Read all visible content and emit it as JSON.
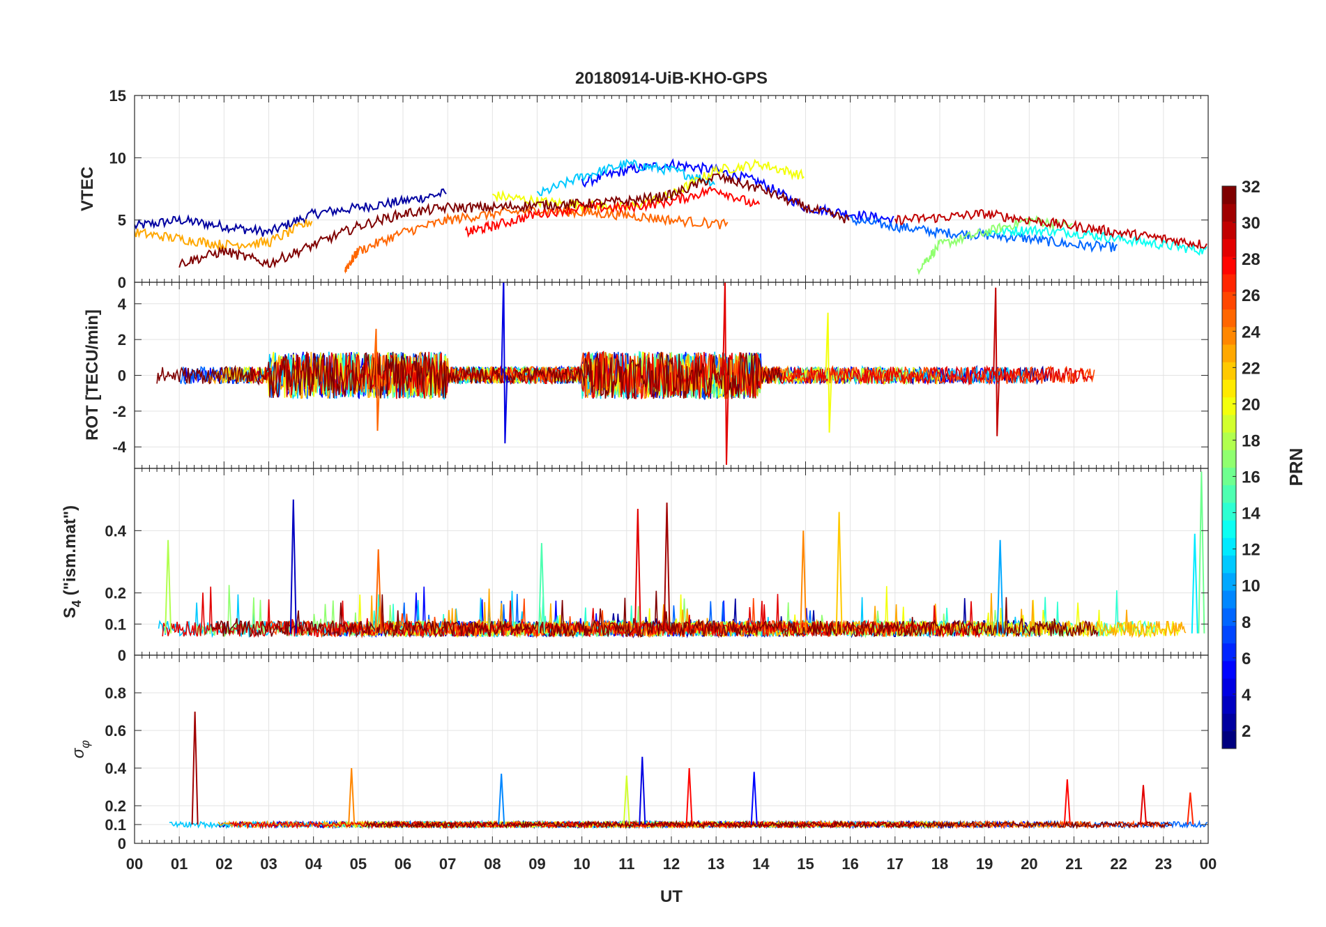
{
  "figure": {
    "title": "20180914-UiB-KHO-GPS",
    "xlabel": "UT",
    "x_ticks": [
      "00",
      "01",
      "02",
      "03",
      "04",
      "05",
      "06",
      "07",
      "08",
      "09",
      "10",
      "11",
      "12",
      "13",
      "14",
      "15",
      "16",
      "17",
      "18",
      "19",
      "20",
      "21",
      "22",
      "23",
      "00"
    ],
    "colorbar": {
      "label": "PRN",
      "range": [
        1,
        32
      ],
      "ticks": [
        "2",
        "4",
        "6",
        "8",
        "10",
        "12",
        "14",
        "16",
        "18",
        "20",
        "22",
        "24",
        "26",
        "28",
        "30",
        "32"
      ],
      "colormap": "jet",
      "stops": [
        "#00007f",
        "#0000ff",
        "#007fff",
        "#00ffff",
        "#7fff7f",
        "#ffff00",
        "#ff7f00",
        "#ff0000",
        "#7f0000"
      ]
    }
  },
  "chart_data": [
    {
      "type": "line",
      "panel": "vtec",
      "ylabel": "VTEC",
      "ylim": [
        0,
        15
      ],
      "y_ticks": [
        "0",
        "5",
        "10",
        "15"
      ],
      "x_unit": "UT hours",
      "xlim": [
        0,
        24
      ],
      "grid": true,
      "series_note_color_by_prn": true,
      "series": [
        {
          "prn": 2,
          "x": [
            0,
            1,
            2,
            3,
            4,
            5,
            6,
            7
          ],
          "values": [
            4.5,
            5,
            4.5,
            4,
            5.5,
            6,
            6.5,
            7.2
          ]
        },
        {
          "prn": 5,
          "x": [
            10,
            11,
            12,
            13,
            14,
            15,
            16,
            17
          ],
          "values": [
            8,
            9,
            9.5,
            9,
            8,
            6,
            5.5,
            5
          ]
        },
        {
          "prn": 8,
          "x": [
            16,
            17,
            18,
            19,
            20,
            21,
            22
          ],
          "values": [
            5,
            4.5,
            4,
            3.8,
            3.5,
            3,
            2.8
          ]
        },
        {
          "prn": 11,
          "x": [
            9,
            10,
            11,
            12,
            13
          ],
          "values": [
            7,
            8.5,
            9.5,
            9,
            8
          ]
        },
        {
          "prn": 13,
          "x": [
            19,
            20,
            21,
            22,
            23,
            24
          ],
          "values": [
            4,
            4.2,
            4,
            3.5,
            3,
            2.5
          ]
        },
        {
          "prn": 17,
          "x": [
            17.5,
            18,
            19,
            20,
            21
          ],
          "values": [
            1,
            3,
            4,
            5,
            4.5
          ]
        },
        {
          "prn": 20,
          "x": [
            8,
            9,
            10,
            11,
            12,
            13,
            14,
            15
          ],
          "values": [
            7,
            6.5,
            6.2,
            6,
            7,
            9,
            9.5,
            8.5
          ]
        },
        {
          "prn": 23,
          "x": [
            0,
            1,
            2,
            3,
            4
          ],
          "values": [
            4,
            3.5,
            3,
            3.2,
            5
          ]
        },
        {
          "prn": 25,
          "x": [
            4.7,
            5,
            6,
            7,
            8,
            9,
            10,
            11,
            12,
            13.3
          ],
          "values": [
            1,
            2.5,
            4,
            5,
            5.5,
            5.8,
            5.6,
            5.4,
            5.0,
            4.6
          ]
        },
        {
          "prn": 28,
          "x": [
            7.4,
            8,
            9,
            10,
            11,
            12,
            13,
            14
          ],
          "values": [
            4,
            4.5,
            5.5,
            6,
            6,
            6.5,
            7.5,
            6
          ]
        },
        {
          "prn": 30,
          "x": [
            17,
            18,
            19,
            20,
            21,
            22,
            23,
            24
          ],
          "values": [
            5,
            5.2,
            5.5,
            5,
            4.5,
            4,
            3.5,
            3
          ]
        },
        {
          "prn": 32,
          "x": [
            1,
            2,
            3,
            4,
            5,
            6,
            7,
            8,
            9,
            10,
            11,
            12,
            13,
            14,
            15,
            16
          ],
          "values": [
            1.5,
            2.5,
            1.5,
            3,
            4.5,
            5.5,
            6,
            6,
            6.2,
            6.3,
            6.5,
            7,
            8.5,
            7.5,
            6,
            5
          ]
        }
      ]
    },
    {
      "type": "line",
      "panel": "rot",
      "ylabel": "ROT [TECU/min]",
      "ylim": [
        -5.2,
        5.2
      ],
      "y_ticks": [
        "-4",
        "-2",
        "0",
        "2",
        "4"
      ],
      "xlim": [
        0,
        24
      ],
      "grid": true,
      "peaks": [
        {
          "prn": 4,
          "x": 8.25,
          "min": -3.8,
          "max": 5.6
        },
        {
          "prn": 29,
          "x": 13.2,
          "min": -5.0,
          "max": 5.4
        },
        {
          "prn": 30,
          "x": 19.25,
          "min": -3.4,
          "max": 4.9
        },
        {
          "prn": 20,
          "x": 15.5,
          "min": -3.2,
          "max": 3.5
        },
        {
          "prn": 25,
          "x": 5.4,
          "min": -3.1,
          "max": 2.6
        }
      ]
    },
    {
      "type": "line",
      "panel": "s4",
      "ylabel": "S4 (\"ism.mat\")",
      "ylim": [
        0,
        0.6
      ],
      "y_ticks": [
        "0",
        "0.1",
        "0.2",
        "0.4"
      ],
      "xlim": [
        0,
        24
      ],
      "grid": true,
      "peaks": [
        {
          "prn": 3,
          "x": 3.55,
          "value": 0.5
        },
        {
          "prn": 29,
          "x": 11.25,
          "value": 0.47
        },
        {
          "prn": 31,
          "x": 11.9,
          "value": 0.49
        },
        {
          "prn": 22,
          "x": 15.75,
          "value": 0.46
        },
        {
          "prn": 24,
          "x": 14.95,
          "value": 0.4
        },
        {
          "prn": 16,
          "x": 23.85,
          "value": 0.59
        },
        {
          "prn": 12,
          "x": 23.7,
          "value": 0.39
        },
        {
          "prn": 10,
          "x": 19.35,
          "value": 0.37
        },
        {
          "prn": 18,
          "x": 0.75,
          "value": 0.37
        },
        {
          "prn": 15,
          "x": 9.1,
          "value": 0.36
        },
        {
          "prn": 25,
          "x": 5.45,
          "value": 0.34
        }
      ]
    },
    {
      "type": "line",
      "panel": "sigma_phi",
      "ylabel": "σφ",
      "ylim": [
        0,
        1
      ],
      "y_ticks": [
        "0",
        "0.1",
        "0.2",
        "0.4",
        "0.6",
        "0.8"
      ],
      "xlim": [
        0,
        24
      ],
      "grid": true,
      "peaks": [
        {
          "prn": 31,
          "x": 1.35,
          "value": 0.7
        },
        {
          "prn": 4,
          "x": 11.35,
          "value": 0.46
        },
        {
          "prn": 28,
          "x": 12.4,
          "value": 0.4
        },
        {
          "prn": 24,
          "x": 4.85,
          "value": 0.4
        },
        {
          "prn": 5,
          "x": 13.85,
          "value": 0.38
        },
        {
          "prn": 19,
          "x": 11.0,
          "value": 0.36
        },
        {
          "prn": 9,
          "x": 8.2,
          "value": 0.37
        },
        {
          "prn": 28,
          "x": 20.85,
          "value": 0.34
        },
        {
          "prn": 29,
          "x": 22.55,
          "value": 0.31
        },
        {
          "prn": 27,
          "x": 23.6,
          "value": 0.27
        }
      ]
    }
  ]
}
